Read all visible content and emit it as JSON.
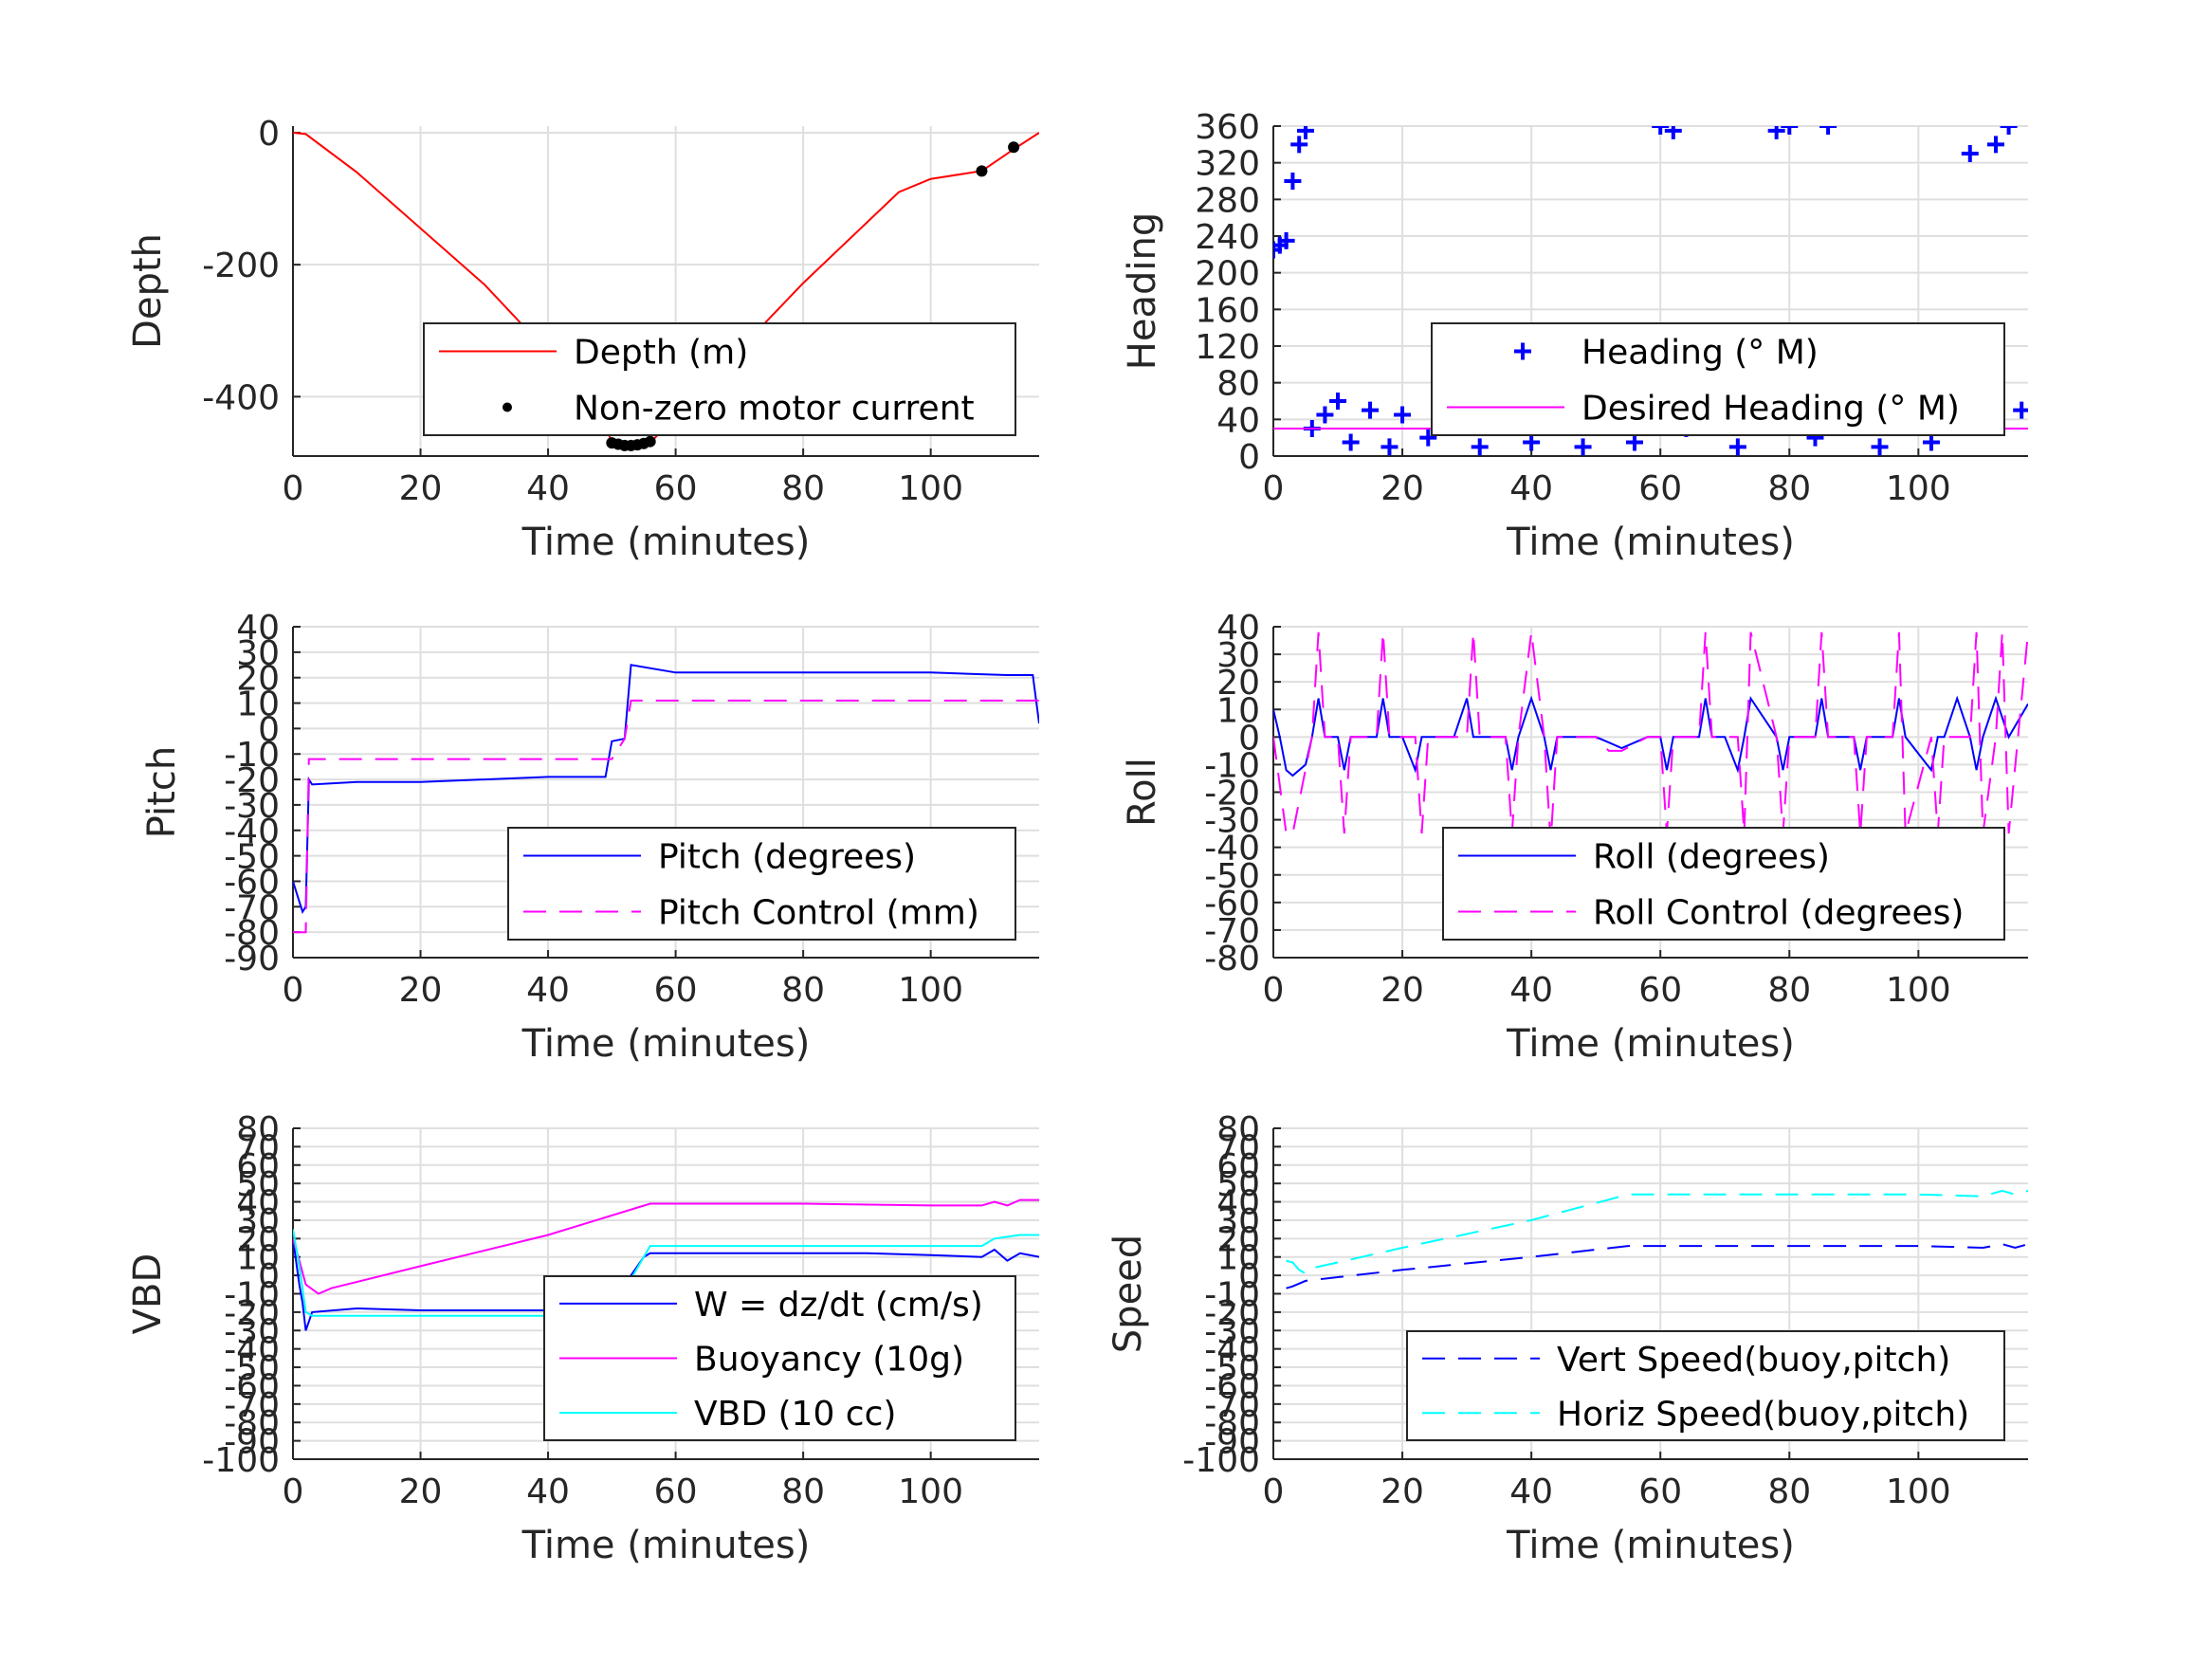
{
  "chart_data": [
    {
      "id": "depth",
      "type": "line",
      "xlabel": "Time (minutes)",
      "ylabel": "Depth",
      "xlim": [
        0,
        117
      ],
      "ylim": [
        -490,
        10
      ],
      "xticks": [
        0,
        20,
        40,
        60,
        80,
        100
      ],
      "yticks": [
        0,
        -200,
        -400
      ],
      "grid": true,
      "legend_position": "lower-right",
      "series": [
        {
          "name": "Depth (m)",
          "color": "#ff0000",
          "style": "solid",
          "x": [
            0,
            2,
            10,
            30,
            48,
            50,
            53,
            56,
            60,
            80,
            95,
            100,
            108,
            113,
            117
          ],
          "y": [
            0,
            -2,
            -60,
            -230,
            -415,
            -470,
            -474,
            -470,
            -430,
            -228,
            -90,
            -70,
            -58,
            -25,
            0
          ]
        },
        {
          "name": "Non-zero motor current",
          "color": "#000000",
          "style": "dot",
          "x": [
            50,
            51,
            52,
            53,
            54,
            55,
            56,
            108,
            113
          ],
          "y": [
            -470,
            -472,
            -474,
            -474,
            -473,
            -471,
            -468,
            -58,
            -22
          ]
        }
      ]
    },
    {
      "id": "heading",
      "type": "scatter",
      "xlabel": "Time (minutes)",
      "ylabel": "Heading",
      "xlim": [
        0,
        117
      ],
      "ylim": [
        0,
        360
      ],
      "xticks": [
        0,
        20,
        40,
        60,
        80,
        100
      ],
      "yticks": [
        0,
        40,
        80,
        120,
        160,
        200,
        240,
        280,
        320,
        360
      ],
      "grid": true,
      "legend_position": "lower-right",
      "series": [
        {
          "name": "Heading (° M)",
          "color": "#0000ff",
          "style": "plus",
          "x": [
            0,
            1,
            2,
            3,
            4,
            5,
            6,
            8,
            10,
            12,
            15,
            18,
            20,
            24,
            28,
            32,
            36,
            40,
            44,
            48,
            52,
            56,
            60,
            62,
            64,
            68,
            72,
            76,
            78,
            80,
            84,
            86,
            88,
            90,
            94,
            98,
            102,
            106,
            108,
            110,
            112,
            114,
            116
          ],
          "y": [
            225,
            230,
            235,
            300,
            340,
            355,
            30,
            45,
            60,
            15,
            50,
            10,
            45,
            20,
            55,
            10,
            60,
            15,
            55,
            10,
            45,
            15,
            360,
            355,
            30,
            60,
            10,
            55,
            355,
            360,
            20,
            360,
            50,
            70,
            10,
            60,
            15,
            80,
            330,
            100,
            340,
            360,
            50
          ]
        },
        {
          "name": "Desired Heading (° M)",
          "color": "#ff00ff",
          "style": "solid",
          "x": [
            0,
            60,
            117
          ],
          "y": [
            30,
            30,
            30
          ]
        }
      ]
    },
    {
      "id": "pitch",
      "type": "line",
      "xlabel": "Time (minutes)",
      "ylabel": "Pitch",
      "xlim": [
        0,
        117
      ],
      "ylim": [
        -90,
        40
      ],
      "xticks": [
        0,
        20,
        40,
        60,
        80,
        100
      ],
      "yticks": [
        -90,
        -80,
        -70,
        -60,
        -50,
        -40,
        -30,
        -20,
        -10,
        0,
        10,
        20,
        30,
        40
      ],
      "grid": true,
      "legend_position": "lower-right",
      "series": [
        {
          "name": "Pitch (degrees)",
          "color": "#0000ff",
          "style": "solid",
          "x": [
            0,
            1,
            1.5,
            2,
            2.5,
            3,
            10,
            20,
            30,
            40,
            49,
            50,
            52,
            53,
            60,
            80,
            100,
            112,
            116,
            117
          ],
          "y": [
            -60,
            -68,
            -72,
            -70,
            -20,
            -22,
            -21,
            -21,
            -20,
            -19,
            -19,
            -5,
            -4,
            25,
            22,
            22,
            22,
            21,
            21,
            2
          ]
        },
        {
          "name": "Pitch Control (mm)",
          "color": "#ff00ff",
          "style": "dash",
          "x": [
            0,
            2,
            2.5,
            50,
            52,
            53,
            117
          ],
          "y": [
            -80,
            -80,
            -12,
            -12,
            -4,
            11,
            11
          ]
        }
      ]
    },
    {
      "id": "roll",
      "type": "line",
      "xlabel": "Time (minutes)",
      "ylabel": "Roll",
      "xlim": [
        0,
        117
      ],
      "ylim": [
        -80,
        40
      ],
      "xticks": [
        0,
        20,
        40,
        60,
        80,
        100
      ],
      "yticks": [
        -80,
        -70,
        -60,
        -50,
        -40,
        -30,
        -20,
        -10,
        0,
        10,
        20,
        30,
        40
      ],
      "grid": true,
      "legend_position": "lower-right",
      "series": [
        {
          "name": "Roll (degrees)",
          "color": "#0000ff",
          "style": "solid",
          "x": [
            0,
            1,
            2,
            3,
            5,
            6,
            7,
            8,
            10,
            11,
            12,
            16,
            17,
            18,
            20,
            22,
            23,
            24,
            28,
            30,
            31,
            32,
            36,
            37,
            38,
            40,
            42,
            43,
            44,
            48,
            50,
            52,
            54,
            58,
            60,
            61,
            62,
            66,
            67,
            68,
            70,
            72,
            73,
            74,
            78,
            79,
            80,
            82,
            84,
            85,
            86,
            90,
            91,
            92,
            94,
            96,
            97,
            98,
            102,
            103,
            104,
            106,
            108,
            109,
            110,
            112,
            114,
            117
          ],
          "y": [
            10,
            0,
            -12,
            -14,
            -10,
            0,
            14,
            0,
            0,
            -12,
            0,
            0,
            14,
            0,
            0,
            -12,
            0,
            0,
            0,
            14,
            0,
            0,
            0,
            -12,
            0,
            14,
            0,
            -12,
            0,
            0,
            0,
            -2,
            -4,
            0,
            0,
            -12,
            0,
            0,
            14,
            0,
            0,
            -12,
            0,
            14,
            0,
            -12,
            0,
            0,
            0,
            14,
            0,
            0,
            -12,
            0,
            0,
            0,
            14,
            0,
            -12,
            0,
            0,
            14,
            0,
            -12,
            0,
            14,
            0,
            12
          ]
        },
        {
          "name": "Roll Control (degrees)",
          "color": "#ff00ff",
          "style": "dash",
          "x": [
            0,
            2,
            3,
            6,
            7,
            8,
            10,
            11,
            12,
            16,
            17,
            18,
            22,
            23,
            24,
            30,
            31,
            32,
            36,
            37,
            38,
            40,
            42,
            43,
            44,
            48,
            50,
            52,
            54,
            58,
            60,
            61,
            62,
            66,
            67,
            68,
            72,
            73,
            74,
            78,
            79,
            80,
            84,
            85,
            86,
            90,
            91,
            92,
            96,
            97,
            98,
            102,
            103,
            104,
            108,
            109,
            110,
            112,
            113,
            114,
            117
          ],
          "y": [
            0,
            -35,
            -35,
            0,
            38,
            0,
            0,
            -35,
            0,
            0,
            38,
            0,
            0,
            -35,
            0,
            0,
            38,
            0,
            0,
            -35,
            0,
            38,
            0,
            -38,
            0,
            0,
            0,
            -5,
            -5,
            0,
            0,
            -35,
            0,
            0,
            38,
            0,
            0,
            -35,
            38,
            0,
            -35,
            0,
            0,
            38,
            0,
            0,
            -35,
            0,
            0,
            38,
            -35,
            0,
            -35,
            0,
            0,
            38,
            -35,
            0,
            38,
            -35,
            38
          ]
        }
      ]
    },
    {
      "id": "vbd",
      "type": "line",
      "xlabel": "Time (minutes)",
      "ylabel": "VBD",
      "xlim": [
        0,
        117
      ],
      "ylim": [
        -100,
        80
      ],
      "xticks": [
        0,
        20,
        40,
        60,
        80,
        100
      ],
      "yticks": [
        -100,
        -90,
        -80,
        -70,
        -60,
        -50,
        -40,
        -30,
        -20,
        -10,
        0,
        10,
        20,
        30,
        40,
        50,
        60,
        70,
        80
      ],
      "grid": true,
      "legend_position": "lower-right",
      "series": [
        {
          "name": "W = dz/dt (cm/s)",
          "color": "#0000ff",
          "style": "solid",
          "x": [
            0,
            1,
            1.5,
            2,
            3,
            10,
            20,
            30,
            40,
            49,
            50,
            52,
            55,
            56,
            60,
            70,
            80,
            90,
            100,
            108,
            110,
            112,
            114,
            117
          ],
          "y": [
            20,
            -5,
            -15,
            -30,
            -20,
            -18,
            -19,
            -19,
            -19,
            -19,
            -10,
            -5,
            10,
            12,
            12,
            12,
            12,
            12,
            11,
            10,
            14,
            8,
            12,
            10
          ]
        },
        {
          "name": "Buoyancy (10g)",
          "color": "#ff00ff",
          "style": "solid",
          "x": [
            0,
            1,
            2,
            4,
            6,
            20,
            40,
            56,
            60,
            80,
            100,
            108,
            110,
            112,
            114,
            117
          ],
          "y": [
            20,
            8,
            -5,
            -10,
            -7,
            5,
            22,
            39,
            39,
            39,
            38,
            38,
            40,
            38,
            41,
            41
          ]
        },
        {
          "name": "VBD (10 cc)",
          "color": "#00ffff",
          "style": "solid",
          "x": [
            0,
            1,
            2,
            3,
            10,
            20,
            30,
            40,
            49,
            50,
            56,
            60,
            80,
            100,
            108,
            110,
            114,
            117
          ],
          "y": [
            25,
            5,
            -20,
            -22,
            -22,
            -22,
            -22,
            -22,
            -22,
            -20,
            16,
            16,
            16,
            16,
            16,
            20,
            22,
            22
          ]
        }
      ]
    },
    {
      "id": "speed",
      "type": "line",
      "xlabel": "Time (minutes)",
      "ylabel": "Speed",
      "xlim": [
        0,
        117
      ],
      "ylim": [
        -100,
        80
      ],
      "xticks": [
        0,
        20,
        40,
        60,
        80,
        100
      ],
      "yticks": [
        -100,
        -90,
        -80,
        -70,
        -60,
        -50,
        -40,
        -30,
        -20,
        -10,
        0,
        10,
        20,
        30,
        40,
        50,
        60,
        70,
        80
      ],
      "grid": true,
      "legend_position": "lower-right",
      "series": [
        {
          "name": "Vert Speed(buoy,pitch)",
          "color": "#0000ff",
          "style": "dash",
          "x": [
            2,
            3,
            5,
            10,
            20,
            40,
            55,
            60,
            80,
            100,
            110,
            113,
            115,
            117
          ],
          "y": [
            -7,
            -6,
            -3,
            -1,
            3,
            10,
            16,
            16,
            16,
            16,
            15,
            17,
            15,
            17
          ]
        },
        {
          "name": "Horiz Speed(buoy,pitch)",
          "color": "#00ffff",
          "style": "dash",
          "x": [
            2,
            3,
            4,
            5,
            6,
            10,
            20,
            40,
            55,
            60,
            80,
            100,
            110,
            113,
            115,
            117
          ],
          "y": [
            8,
            7,
            3,
            1,
            4,
            7,
            15,
            30,
            44,
            44,
            44,
            44,
            43,
            46,
            44,
            46
          ]
        }
      ]
    }
  ]
}
